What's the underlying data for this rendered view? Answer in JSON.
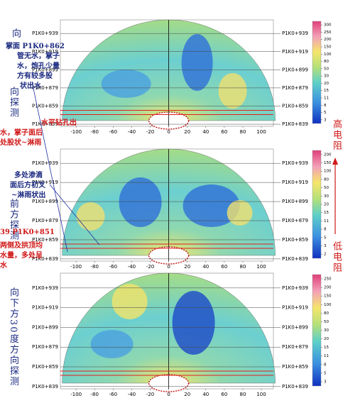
{
  "chart_data": [
    {
      "type": "contour",
      "xlim": [
        -117,
        113
      ],
      "xticks": [
        -100,
        -80,
        -60,
        -40,
        -20,
        0,
        20,
        40,
        60,
        80,
        100
      ],
      "ylim": [
        836.7,
        954
      ],
      "yticks": [
        {
          "value": 939,
          "label": "P1K0+939"
        },
        {
          "value": 919,
          "label": "P1K0+919"
        },
        {
          "value": 899,
          "label": "P1K0+899"
        },
        {
          "value": 879,
          "label": "P1K0+879"
        },
        {
          "value": 859,
          "label": "P1K0+859"
        },
        {
          "value": 839,
          "label": "P1K0+839"
        }
      ],
      "colorbar": [
        300,
        250,
        200,
        150,
        100,
        80,
        50,
        30,
        20,
        15,
        11,
        8,
        5,
        3
      ]
    },
    {
      "type": "contour",
      "xlim": [
        -117,
        113
      ],
      "xticks": [
        -100,
        -80,
        -60,
        -40,
        -20,
        0,
        20,
        40,
        60,
        80,
        100
      ],
      "ylim": [
        836.7,
        954
      ],
      "yticks": [
        {
          "value": 939,
          "label": "P1K0+939"
        },
        {
          "value": 919,
          "label": "P1K0+919"
        },
        {
          "value": 899,
          "label": "P1K0+899"
        },
        {
          "value": 879,
          "label": "P1K0+879"
        },
        {
          "value": 859,
          "label": "P1K0+859"
        },
        {
          "value": 839,
          "label": "P1K0+839"
        }
      ],
      "colorbar": [
        200,
        150,
        100,
        80,
        50,
        30,
        20,
        15,
        11,
        8,
        5,
        3,
        2
      ]
    },
    {
      "type": "contour",
      "xlim": [
        -117,
        113
      ],
      "xticks": [
        -100,
        -80,
        -60,
        -40,
        -20,
        0,
        20,
        40,
        60,
        80,
        100
      ],
      "ylim": [
        836.7,
        954
      ],
      "yticks": [
        {
          "value": 939,
          "label": "P1K0+939"
        },
        {
          "value": 919,
          "label": "P1K0+919"
        },
        {
          "value": 899,
          "label": "P1K0+899"
        },
        {
          "value": 879,
          "label": "P1K0+879"
        },
        {
          "value": 859,
          "label": "P1K0+859"
        },
        {
          "value": 839,
          "label": "P1K0+839"
        }
      ],
      "colorbar": [
        250,
        200,
        150,
        100,
        80,
        50,
        30,
        20,
        15,
        11,
        8,
        5,
        3
      ]
    }
  ],
  "annotations": [
    "向",
    "掌面 P1K0+862",
    "管无水，掌子",
    "水，炮孔少量",
    "方有较多股",
    "状出水",
    "向探测",
    "水平钻孔出",
    "水，掌子面后",
    "处股状~淋雨",
    "多处渗滴",
    "面后方初叉",
    "~淋雨状出",
    "前方探测",
    "39  P1K0+851",
    "两侧及拱顶均",
    "水量，多处呈",
    "水",
    "向下方30度方向探测",
    "高电阻",
    "低电阻"
  ]
}
